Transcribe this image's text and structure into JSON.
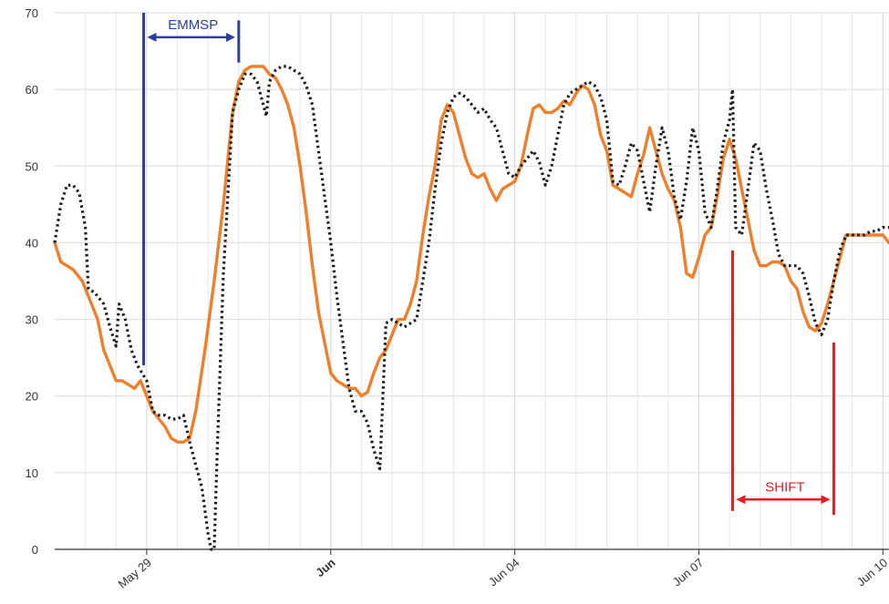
{
  "chart_data": {
    "type": "line",
    "title": "",
    "xlabel": "",
    "ylabel": "",
    "ylim": [
      0,
      70
    ],
    "y_ticks": [
      0,
      10,
      20,
      30,
      40,
      50,
      60,
      70
    ],
    "xlim": [
      0,
      13.6
    ],
    "x_ticks": [
      {
        "x": 1.5,
        "label": "May 29",
        "bold": false
      },
      {
        "x": 4.5,
        "label": "Jun",
        "bold": true
      },
      {
        "x": 7.5,
        "label": "Jun 04",
        "bold": false
      },
      {
        "x": 10.5,
        "label": "Jun 07",
        "bold": false
      },
      {
        "x": 13.5,
        "label": "Jun 10",
        "bold": false
      }
    ],
    "grid": true,
    "legend": "none",
    "series": [
      {
        "color": "#f07f2c",
        "style": "solid",
        "points": [
          [
            0,
            40
          ],
          [
            0.1,
            37.5
          ],
          [
            0.2,
            37
          ],
          [
            0.3,
            36.5
          ],
          [
            0.45,
            35
          ],
          [
            0.6,
            32
          ],
          [
            0.7,
            30
          ],
          [
            0.8,
            26
          ],
          [
            0.9,
            24
          ],
          [
            1.0,
            22
          ],
          [
            1.1,
            22
          ],
          [
            1.2,
            21.5
          ],
          [
            1.3,
            21
          ],
          [
            1.4,
            22
          ],
          [
            1.5,
            20
          ],
          [
            1.6,
            18
          ],
          [
            1.7,
            17
          ],
          [
            1.8,
            16
          ],
          [
            1.9,
            14.5
          ],
          [
            2.0,
            14
          ],
          [
            2.1,
            14
          ],
          [
            2.2,
            14.5
          ],
          [
            2.3,
            18
          ],
          [
            2.45,
            26
          ],
          [
            2.6,
            35
          ],
          [
            2.75,
            45
          ],
          [
            2.9,
            57
          ],
          [
            3.0,
            61
          ],
          [
            3.1,
            62.5
          ],
          [
            3.2,
            63
          ],
          [
            3.3,
            63
          ],
          [
            3.4,
            63
          ],
          [
            3.5,
            62
          ],
          [
            3.6,
            61.5
          ],
          [
            3.7,
            60
          ],
          [
            3.8,
            58
          ],
          [
            3.9,
            55
          ],
          [
            4.0,
            50
          ],
          [
            4.1,
            44
          ],
          [
            4.2,
            37
          ],
          [
            4.3,
            31
          ],
          [
            4.4,
            27
          ],
          [
            4.5,
            23
          ],
          [
            4.6,
            22
          ],
          [
            4.7,
            21.5
          ],
          [
            4.8,
            21
          ],
          [
            4.9,
            21
          ],
          [
            5.0,
            20
          ],
          [
            5.1,
            20.5
          ],
          [
            5.2,
            23
          ],
          [
            5.3,
            25
          ],
          [
            5.4,
            26
          ],
          [
            5.5,
            28
          ],
          [
            5.6,
            30
          ],
          [
            5.7,
            30
          ],
          [
            5.8,
            32
          ],
          [
            5.9,
            35
          ],
          [
            6.0,
            41
          ],
          [
            6.1,
            46
          ],
          [
            6.2,
            50
          ],
          [
            6.3,
            56
          ],
          [
            6.4,
            58
          ],
          [
            6.5,
            57
          ],
          [
            6.6,
            54
          ],
          [
            6.7,
            51
          ],
          [
            6.8,
            49
          ],
          [
            6.9,
            48.5
          ],
          [
            7.0,
            49
          ],
          [
            7.1,
            47
          ],
          [
            7.2,
            45.5
          ],
          [
            7.3,
            47
          ],
          [
            7.4,
            47.5
          ],
          [
            7.5,
            48
          ],
          [
            7.6,
            50
          ],
          [
            7.7,
            54
          ],
          [
            7.8,
            57.5
          ],
          [
            7.9,
            58
          ],
          [
            8.0,
            57
          ],
          [
            8.1,
            57
          ],
          [
            8.2,
            57.5
          ],
          [
            8.3,
            58.5
          ],
          [
            8.4,
            58
          ],
          [
            8.5,
            59.5
          ],
          [
            8.6,
            60.5
          ],
          [
            8.7,
            60
          ],
          [
            8.8,
            58
          ],
          [
            8.9,
            54
          ],
          [
            9.0,
            52
          ],
          [
            9.1,
            47.5
          ],
          [
            9.2,
            47
          ],
          [
            9.3,
            46.5
          ],
          [
            9.4,
            46
          ],
          [
            9.5,
            49
          ],
          [
            9.6,
            51.5
          ],
          [
            9.7,
            55
          ],
          [
            9.8,
            52
          ],
          [
            9.9,
            49
          ],
          [
            10.0,
            47
          ],
          [
            10.1,
            45.5
          ],
          [
            10.2,
            42
          ],
          [
            10.3,
            36
          ],
          [
            10.4,
            35.5
          ],
          [
            10.5,
            38
          ],
          [
            10.6,
            41
          ],
          [
            10.7,
            42
          ],
          [
            10.8,
            46
          ],
          [
            10.9,
            51
          ],
          [
            11.0,
            53.5
          ],
          [
            11.1,
            51
          ],
          [
            11.2,
            47
          ],
          [
            11.3,
            43
          ],
          [
            11.4,
            39
          ],
          [
            11.5,
            37
          ],
          [
            11.6,
            37
          ],
          [
            11.7,
            37.5
          ],
          [
            11.8,
            37.5
          ],
          [
            11.9,
            37
          ],
          [
            12.0,
            35
          ],
          [
            12.1,
            34
          ],
          [
            12.2,
            31
          ],
          [
            12.3,
            29
          ],
          [
            12.4,
            28.5
          ],
          [
            12.5,
            29.5
          ],
          [
            12.6,
            32
          ],
          [
            12.7,
            35
          ],
          [
            12.8,
            38
          ],
          [
            12.9,
            41
          ],
          [
            13.0,
            41
          ],
          [
            13.1,
            41
          ],
          [
            13.2,
            41
          ],
          [
            13.3,
            41
          ],
          [
            13.4,
            41
          ],
          [
            13.5,
            41
          ],
          [
            13.6,
            40
          ]
        ]
      },
      {
        "color": "#1a1a1a",
        "style": "dotted",
        "points": [
          [
            0,
            40
          ],
          [
            0.1,
            45
          ],
          [
            0.2,
            47.5
          ],
          [
            0.3,
            47.5
          ],
          [
            0.4,
            46.5
          ],
          [
            0.5,
            42
          ],
          [
            0.55,
            34
          ],
          [
            0.65,
            33.5
          ],
          [
            0.8,
            32
          ],
          [
            0.9,
            29
          ],
          [
            1.0,
            26.5
          ],
          [
            1.05,
            32
          ],
          [
            1.15,
            30
          ],
          [
            1.25,
            26
          ],
          [
            1.35,
            24
          ],
          [
            1.5,
            22
          ],
          [
            1.6,
            18
          ],
          [
            1.7,
            17.5
          ],
          [
            1.8,
            17.5
          ],
          [
            1.9,
            17
          ],
          [
            2.0,
            17
          ],
          [
            2.1,
            17.5
          ],
          [
            2.2,
            14
          ],
          [
            2.3,
            11
          ],
          [
            2.4,
            8
          ],
          [
            2.5,
            2
          ],
          [
            2.55,
            0
          ],
          [
            2.6,
            0
          ],
          [
            2.65,
            13
          ],
          [
            2.75,
            36
          ],
          [
            2.9,
            57
          ],
          [
            3.0,
            60
          ],
          [
            3.1,
            62
          ],
          [
            3.2,
            62
          ],
          [
            3.3,
            61
          ],
          [
            3.4,
            58
          ],
          [
            3.45,
            56.5
          ],
          [
            3.5,
            61
          ],
          [
            3.6,
            62.5
          ],
          [
            3.7,
            63
          ],
          [
            3.8,
            63
          ],
          [
            3.9,
            62.5
          ],
          [
            4.0,
            62
          ],
          [
            4.1,
            60.5
          ],
          [
            4.2,
            58
          ],
          [
            4.3,
            52
          ],
          [
            4.4,
            46
          ],
          [
            4.5,
            40
          ],
          [
            4.6,
            33
          ],
          [
            4.7,
            27
          ],
          [
            4.8,
            21
          ],
          [
            4.9,
            18
          ],
          [
            5.0,
            18
          ],
          [
            5.1,
            16.5
          ],
          [
            5.2,
            13
          ],
          [
            5.3,
            10.5
          ],
          [
            5.4,
            29.5
          ],
          [
            5.5,
            30
          ],
          [
            5.6,
            29.5
          ],
          [
            5.7,
            29
          ],
          [
            5.8,
            29.5
          ],
          [
            5.9,
            30
          ],
          [
            6.0,
            35
          ],
          [
            6.1,
            40
          ],
          [
            6.2,
            47
          ],
          [
            6.3,
            53
          ],
          [
            6.4,
            57
          ],
          [
            6.5,
            59
          ],
          [
            6.6,
            59.5
          ],
          [
            6.7,
            59
          ],
          [
            6.8,
            58
          ],
          [
            6.9,
            57
          ],
          [
            7.0,
            57.5
          ],
          [
            7.1,
            56
          ],
          [
            7.2,
            55
          ],
          [
            7.3,
            52
          ],
          [
            7.4,
            49
          ],
          [
            7.5,
            48.5
          ],
          [
            7.6,
            50
          ],
          [
            7.7,
            51
          ],
          [
            7.8,
            52
          ],
          [
            7.9,
            50.5
          ],
          [
            8.0,
            47.5
          ],
          [
            8.1,
            50
          ],
          [
            8.2,
            54
          ],
          [
            8.3,
            58
          ],
          [
            8.4,
            59.5
          ],
          [
            8.5,
            60
          ],
          [
            8.6,
            60.5
          ],
          [
            8.7,
            61
          ],
          [
            8.8,
            60.5
          ],
          [
            8.9,
            59
          ],
          [
            9.0,
            56
          ],
          [
            9.1,
            48
          ],
          [
            9.2,
            47.5
          ],
          [
            9.3,
            50
          ],
          [
            9.4,
            53
          ],
          [
            9.5,
            52
          ],
          [
            9.6,
            48
          ],
          [
            9.7,
            44
          ],
          [
            9.8,
            50
          ],
          [
            9.9,
            55
          ],
          [
            10.0,
            52
          ],
          [
            10.1,
            46
          ],
          [
            10.2,
            43
          ],
          [
            10.3,
            48
          ],
          [
            10.4,
            55
          ],
          [
            10.5,
            52
          ],
          [
            10.6,
            44
          ],
          [
            10.7,
            42
          ],
          [
            10.8,
            47
          ],
          [
            10.9,
            53
          ],
          [
            11.0,
            56
          ],
          [
            11.05,
            60
          ],
          [
            11.1,
            42
          ],
          [
            11.2,
            41
          ],
          [
            11.3,
            47
          ],
          [
            11.4,
            53
          ],
          [
            11.5,
            52
          ],
          [
            11.6,
            47
          ],
          [
            11.7,
            43
          ],
          [
            11.8,
            38.5
          ],
          [
            11.9,
            37
          ],
          [
            12.0,
            37
          ],
          [
            12.1,
            37
          ],
          [
            12.2,
            36
          ],
          [
            12.3,
            33
          ],
          [
            12.4,
            29.5
          ],
          [
            12.5,
            28
          ],
          [
            12.6,
            30
          ],
          [
            12.7,
            35
          ],
          [
            12.8,
            39
          ],
          [
            12.9,
            41
          ],
          [
            13.0,
            41
          ],
          [
            13.1,
            41
          ],
          [
            13.2,
            41
          ],
          [
            13.3,
            41.5
          ],
          [
            13.4,
            41.5
          ],
          [
            13.5,
            42
          ],
          [
            13.6,
            42
          ]
        ]
      }
    ],
    "annotations": [
      {
        "label": "EMMSP",
        "color": "#2c3f9a",
        "x1": 1.45,
        "x2": 3.0,
        "line1": [
          70,
          24
        ],
        "line2": [
          69,
          63.5
        ],
        "arrow_y": 66.8
      },
      {
        "label": "SHIFT",
        "color": "#e02020",
        "x1": 11.05,
        "x2": 12.7,
        "line1": [
          39,
          5
        ],
        "line2": [
          27,
          4.5
        ],
        "arrow_y": 6.5
      }
    ]
  }
}
